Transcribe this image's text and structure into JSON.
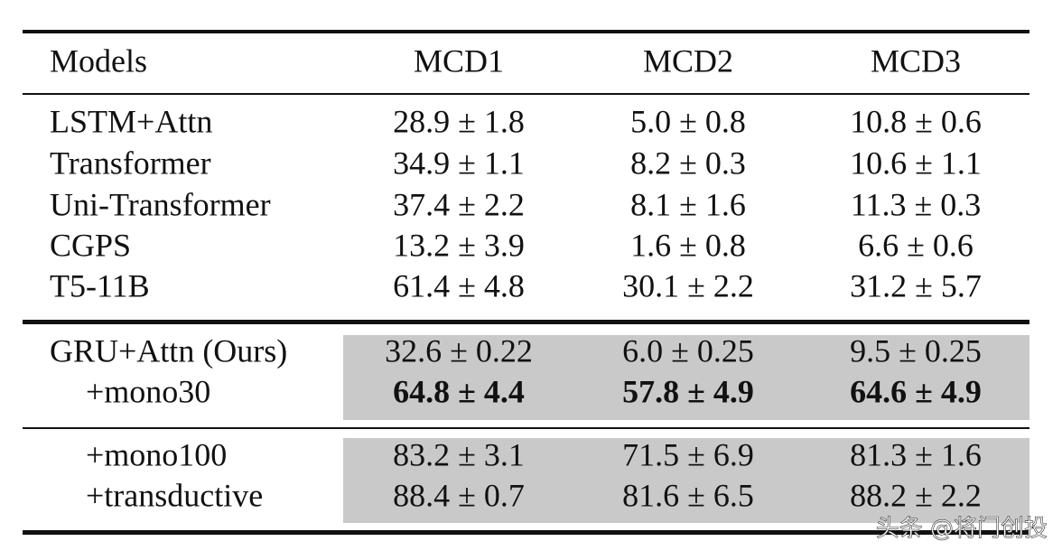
{
  "table": {
    "header": [
      "Models",
      "MCD1",
      "MCD2",
      "MCD3"
    ],
    "groups": [
      {
        "rows": [
          [
            "LSTM+Attn",
            "28.9 ± 1.8",
            "5.0 ± 0.8",
            "10.8 ± 0.6"
          ],
          [
            "Transformer",
            "34.9 ± 1.1",
            "8.2 ± 0.3",
            "10.6 ± 1.1"
          ],
          [
            "Uni-Transformer",
            "37.4 ± 2.2",
            "8.1 ± 1.6",
            "11.3 ± 0.3"
          ],
          [
            "CGPS",
            "13.2 ± 3.9",
            "1.6 ± 0.8",
            "6.6 ± 0.6"
          ],
          [
            "T5-11B",
            "61.4 ± 4.8",
            "30.1 ± 2.2",
            "31.2 ± 5.7"
          ]
        ]
      },
      {
        "rows": [
          [
            "GRU+Attn (Ours)",
            "32.6 ± 0.22",
            "6.0 ± 0.25",
            "9.5 ± 0.25"
          ],
          [
            "+mono30",
            "64.8 ± 4.4",
            "57.8 ± 4.9",
            "64.6 ± 4.9"
          ]
        ]
      },
      {
        "rows": [
          [
            "+mono100",
            "83.2 ± 3.1",
            "71.5 ± 6.9",
            "81.3 ± 1.6"
          ],
          [
            "+transductive",
            "88.4 ± 0.7",
            "81.6 ± 6.5",
            "88.2 ± 2.2"
          ]
        ]
      }
    ]
  },
  "watermark": "头条 @将门创投"
}
